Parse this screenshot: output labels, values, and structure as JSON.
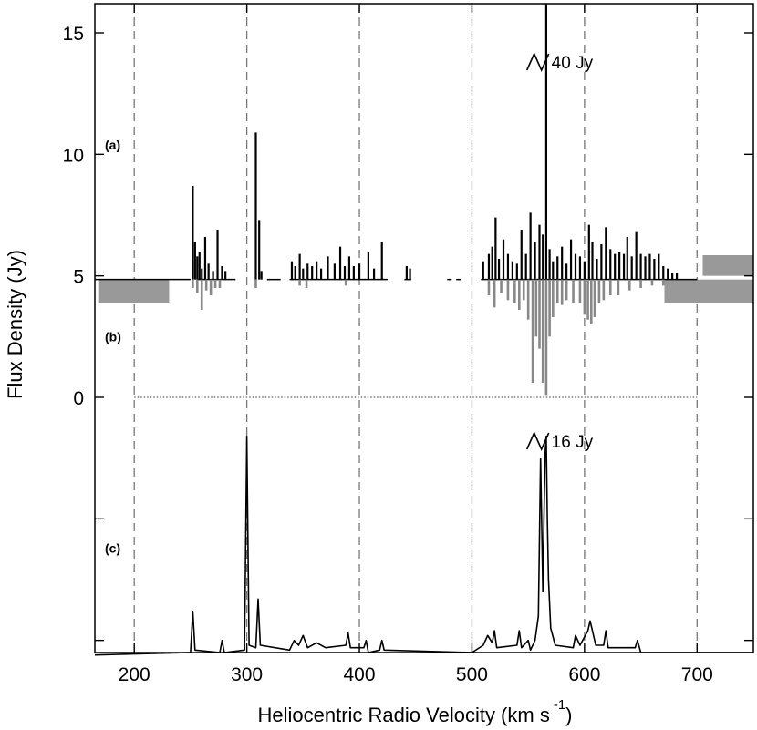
{
  "chart_data": {
    "type": "line",
    "xlabel": "Heliocentric Radio Velocity (km s",
    "xlabel_sup": "-1",
    "ylabel": "Flux Density (Jy)",
    "xlim": [
      165,
      750
    ],
    "ylim": [
      -10.5,
      16.2
    ],
    "x_ticks": [
      200,
      300,
      400,
      500,
      600,
      700
    ],
    "x_tick_labels": [
      "200",
      "300",
      "400",
      "500",
      "600",
      "700"
    ],
    "y_ticks": [
      0,
      5,
      10,
      15
    ],
    "y_tick_labels": [
      "0",
      "5",
      "10",
      "15"
    ],
    "y_minor_ticks": [
      -5,
      -10
    ],
    "dashed_vlines": [
      200,
      300,
      400,
      500,
      600,
      700
    ],
    "zero_line": {
      "y": 0,
      "x": [
        200,
        700
      ]
    },
    "panel_labels": [
      {
        "text": "(a)",
        "x": 195,
        "y": 10.2
      },
      {
        "text": "(b)",
        "x": 195,
        "y": 2.3
      },
      {
        "text": "(c)",
        "x": 195,
        "y": -6.4
      }
    ],
    "annotations": [
      {
        "text": "40 Jy",
        "x": 565,
        "y": 13.8
      },
      {
        "text": "16 Jy",
        "x": 565,
        "y": -1.8
      }
    ],
    "series": [
      {
        "label": "(a)",
        "kind": "stems_up",
        "baseline": 4.85,
        "color": "#000000",
        "points": [
          [
            252,
            8.7
          ],
          [
            254,
            6.4
          ],
          [
            256,
            5.8
          ],
          [
            258,
            6.0
          ],
          [
            260,
            5.3
          ],
          [
            263,
            6.6
          ],
          [
            266,
            5.5
          ],
          [
            270,
            5.2
          ],
          [
            274,
            6.9
          ],
          [
            278,
            5.4
          ],
          [
            281,
            5.2
          ],
          [
            308,
            10.9
          ],
          [
            311,
            7.3
          ],
          [
            313,
            5.2
          ],
          [
            340,
            5.6
          ],
          [
            343,
            5.4
          ],
          [
            347,
            5.9
          ],
          [
            350,
            5.3
          ],
          [
            354,
            5.5
          ],
          [
            358,
            5.4
          ],
          [
            362,
            5.6
          ],
          [
            366,
            5.3
          ],
          [
            372,
            5.8
          ],
          [
            378,
            5.5
          ],
          [
            383,
            6.2
          ],
          [
            387,
            5.4
          ],
          [
            391,
            5.8
          ],
          [
            395,
            5.4
          ],
          [
            400,
            5.5
          ],
          [
            408,
            6.0
          ],
          [
            413,
            5.3
          ],
          [
            420,
            6.4
          ],
          [
            442,
            5.4
          ],
          [
            445,
            5.3
          ],
          [
            510,
            5.6
          ],
          [
            515,
            5.9
          ],
          [
            518,
            6.2
          ],
          [
            521,
            7.4
          ],
          [
            524,
            5.7
          ],
          [
            528,
            6.5
          ],
          [
            532,
            5.9
          ],
          [
            536,
            5.6
          ],
          [
            540,
            5.5
          ],
          [
            544,
            6.9
          ],
          [
            548,
            5.9
          ],
          [
            552,
            7.6
          ],
          [
            556,
            6.4
          ],
          [
            560,
            7.1
          ],
          [
            563,
            6.7
          ],
          [
            566,
            16.2
          ],
          [
            569,
            6.1
          ],
          [
            572,
            5.6
          ],
          [
            576,
            5.8
          ],
          [
            580,
            6.2
          ],
          [
            584,
            5.5
          ],
          [
            588,
            6.5
          ],
          [
            592,
            5.9
          ],
          [
            596,
            5.8
          ],
          [
            600,
            5.6
          ],
          [
            604,
            7.1
          ],
          [
            607,
            6.4
          ],
          [
            611,
            5.7
          ],
          [
            615,
            6.3
          ],
          [
            619,
            7.0
          ],
          [
            623,
            6.1
          ],
          [
            627,
            5.9
          ],
          [
            631,
            6.0
          ],
          [
            635,
            5.9
          ],
          [
            638,
            6.6
          ],
          [
            642,
            5.8
          ],
          [
            646,
            6.8
          ],
          [
            650,
            5.9
          ],
          [
            654,
            5.8
          ],
          [
            658,
            5.9
          ],
          [
            662,
            5.7
          ],
          [
            666,
            5.9
          ],
          [
            670,
            5.4
          ],
          [
            674,
            5.3
          ],
          [
            678,
            5.1
          ],
          [
            682,
            5.1
          ]
        ]
      },
      {
        "label": "(b)",
        "kind": "stems_down",
        "baseline": 4.85,
        "color": "#888888",
        "points": [
          [
            252,
            4.5
          ],
          [
            256,
            4.3
          ],
          [
            260,
            3.6
          ],
          [
            264,
            4.4
          ],
          [
            268,
            4.2
          ],
          [
            272,
            4.5
          ],
          [
            276,
            4.5
          ],
          [
            308,
            4.5
          ],
          [
            347,
            4.6
          ],
          [
            353,
            4.5
          ],
          [
            388,
            4.6
          ],
          [
            515,
            4.2
          ],
          [
            520,
            3.7
          ],
          [
            526,
            4.3
          ],
          [
            532,
            4.0
          ],
          [
            538,
            3.9
          ],
          [
            542,
            3.6
          ],
          [
            546,
            4.0
          ],
          [
            550,
            3.2
          ],
          [
            554,
            0.6
          ],
          [
            557,
            2.5
          ],
          [
            560,
            2.0
          ],
          [
            563,
            0.6
          ],
          [
            566,
            0.1
          ],
          [
            569,
            2.5
          ],
          [
            572,
            3.3
          ],
          [
            576,
            3.9
          ],
          [
            580,
            3.8
          ],
          [
            584,
            4.0
          ],
          [
            590,
            3.9
          ],
          [
            596,
            3.9
          ],
          [
            600,
            3.4
          ],
          [
            603,
            3.2
          ],
          [
            606,
            3.0
          ],
          [
            609,
            3.3
          ],
          [
            613,
            3.9
          ],
          [
            617,
            4.0
          ],
          [
            623,
            4.2
          ],
          [
            630,
            4.2
          ],
          [
            640,
            4.4
          ],
          [
            650,
            4.5
          ],
          [
            660,
            4.6
          ],
          [
            670,
            4.6
          ]
        ]
      },
      {
        "label": "(c)",
        "kind": "line",
        "baseline": -10.6,
        "color": "#000000",
        "points": [
          [
            165,
            -10.6
          ],
          [
            250,
            -10.5
          ],
          [
            252,
            -8.8
          ],
          [
            254,
            -10.4
          ],
          [
            276,
            -10.5
          ],
          [
            278,
            -10.0
          ],
          [
            280,
            -10.5
          ],
          [
            298,
            -10.4
          ],
          [
            300,
            -1.6
          ],
          [
            302,
            -10.2
          ],
          [
            308,
            -10.3
          ],
          [
            310,
            -8.3
          ],
          [
            312,
            -10.2
          ],
          [
            338,
            -10.4
          ],
          [
            342,
            -10.0
          ],
          [
            346,
            -10.2
          ],
          [
            350,
            -9.8
          ],
          [
            354,
            -10.3
          ],
          [
            362,
            -10.1
          ],
          [
            370,
            -10.3
          ],
          [
            388,
            -10.2
          ],
          [
            390,
            -9.7
          ],
          [
            392,
            -10.3
          ],
          [
            404,
            -10.3
          ],
          [
            406,
            -10.0
          ],
          [
            408,
            -10.5
          ],
          [
            418,
            -10.4
          ],
          [
            420,
            -10.0
          ],
          [
            422,
            -10.4
          ],
          [
            500,
            -10.5
          ],
          [
            510,
            -10.2
          ],
          [
            514,
            -9.8
          ],
          [
            518,
            -10.1
          ],
          [
            520,
            -9.6
          ],
          [
            522,
            -10.3
          ],
          [
            540,
            -10.2
          ],
          [
            542,
            -9.6
          ],
          [
            544,
            -10.3
          ],
          [
            550,
            -10.0
          ],
          [
            552,
            -10.4
          ],
          [
            556,
            -10.0
          ],
          [
            559,
            -9.0
          ],
          [
            561,
            -2.5
          ],
          [
            563,
            -8.0
          ],
          [
            564,
            -5.0
          ],
          [
            565,
            -2.3
          ],
          [
            566,
            -1.6
          ],
          [
            567,
            -5.0
          ],
          [
            568,
            -7.5
          ],
          [
            570,
            -9.5
          ],
          [
            574,
            -10.2
          ],
          [
            590,
            -10.3
          ],
          [
            592,
            -9.8
          ],
          [
            596,
            -10.2
          ],
          [
            603,
            -9.6
          ],
          [
            605,
            -9.2
          ],
          [
            607,
            -9.6
          ],
          [
            610,
            -10.2
          ],
          [
            617,
            -10.2
          ],
          [
            619,
            -9.6
          ],
          [
            621,
            -10.3
          ],
          [
            645,
            -10.3
          ],
          [
            647,
            -10.0
          ],
          [
            650,
            -10.5
          ],
          [
            700,
            -10.5
          ],
          [
            750,
            -10.5
          ]
        ]
      }
    ],
    "grey_blocks": [
      {
        "x": [
          168,
          231
        ],
        "y": [
          3.9,
          4.85
        ],
        "color": "#999999"
      },
      {
        "x": [
          671,
          750
        ],
        "y": [
          3.9,
          4.85
        ],
        "color": "#999999"
      },
      {
        "x": [
          705,
          750
        ],
        "y": [
          5.0,
          5.85
        ],
        "color": "#999999"
      }
    ],
    "baseline_segments": {
      "y": 4.85,
      "ranges": [
        [
          165,
          250
        ],
        [
          256,
          290
        ],
        [
          318,
          330
        ],
        [
          338,
          425
        ],
        [
          440,
          446
        ],
        [
          478,
          482
        ],
        [
          486,
          490
        ],
        [
          508,
          700
        ]
      ]
    }
  }
}
